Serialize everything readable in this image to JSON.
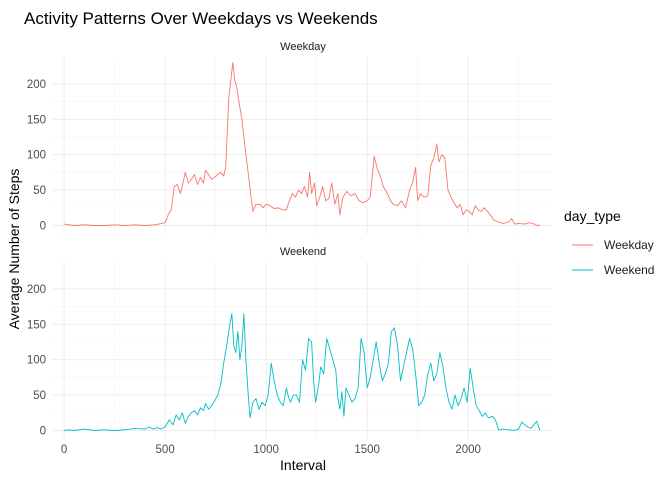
{
  "chart_data": {
    "type": "line",
    "title": "Activity Patterns Over Weekdays vs Weekends",
    "xlabel": "Interval",
    "ylabel": "Average Number of Steps",
    "xlim": [
      -60,
      2415
    ],
    "ylim": [
      -12,
      238
    ],
    "x_ticks": [
      0,
      500,
      1000,
      1500,
      2000
    ],
    "y_ticks": [
      0,
      50,
      100,
      150,
      200
    ],
    "grid": true,
    "legend": {
      "title": "day_type",
      "position": "right",
      "entries": [
        "Weekday",
        "Weekend"
      ]
    },
    "facets": [
      "Weekday",
      "Weekend"
    ],
    "series": [
      {
        "name": "Weekday",
        "facet": "Weekday",
        "color": "#F8766D",
        "points": [
          [
            0,
            2
          ],
          [
            25,
            1
          ],
          [
            50,
            0
          ],
          [
            100,
            1
          ],
          [
            150,
            0
          ],
          [
            200,
            0
          ],
          [
            250,
            1
          ],
          [
            300,
            0
          ],
          [
            350,
            1
          ],
          [
            400,
            0
          ],
          [
            450,
            1
          ],
          [
            500,
            4
          ],
          [
            515,
            15
          ],
          [
            530,
            22
          ],
          [
            545,
            55
          ],
          [
            560,
            58
          ],
          [
            575,
            45
          ],
          [
            590,
            62
          ],
          [
            600,
            75
          ],
          [
            615,
            60
          ],
          [
            630,
            65
          ],
          [
            645,
            72
          ],
          [
            660,
            58
          ],
          [
            675,
            68
          ],
          [
            690,
            60
          ],
          [
            700,
            78
          ],
          [
            715,
            72
          ],
          [
            730,
            65
          ],
          [
            745,
            68
          ],
          [
            760,
            72
          ],
          [
            775,
            75
          ],
          [
            790,
            70
          ],
          [
            800,
            82
          ],
          [
            815,
            180
          ],
          [
            825,
            205
          ],
          [
            835,
            230
          ],
          [
            845,
            205
          ],
          [
            855,
            195
          ],
          [
            865,
            175
          ],
          [
            880,
            150
          ],
          [
            900,
            100
          ],
          [
            915,
            65
          ],
          [
            925,
            40
          ],
          [
            935,
            20
          ],
          [
            950,
            30
          ],
          [
            970,
            30
          ],
          [
            985,
            25
          ],
          [
            1000,
            30
          ],
          [
            1020,
            28
          ],
          [
            1040,
            24
          ],
          [
            1060,
            25
          ],
          [
            1080,
            22
          ],
          [
            1100,
            22
          ],
          [
            1115,
            35
          ],
          [
            1130,
            45
          ],
          [
            1145,
            40
          ],
          [
            1160,
            50
          ],
          [
            1175,
            45
          ],
          [
            1190,
            55
          ],
          [
            1205,
            40
          ],
          [
            1215,
            75
          ],
          [
            1225,
            45
          ],
          [
            1240,
            60
          ],
          [
            1250,
            28
          ],
          [
            1265,
            40
          ],
          [
            1280,
            55
          ],
          [
            1295,
            35
          ],
          [
            1310,
            38
          ],
          [
            1325,
            60
          ],
          [
            1340,
            30
          ],
          [
            1355,
            45
          ],
          [
            1365,
            15
          ],
          [
            1380,
            40
          ],
          [
            1400,
            48
          ],
          [
            1420,
            42
          ],
          [
            1440,
            45
          ],
          [
            1460,
            35
          ],
          [
            1480,
            32
          ],
          [
            1500,
            35
          ],
          [
            1515,
            40
          ],
          [
            1535,
            98
          ],
          [
            1550,
            80
          ],
          [
            1565,
            70
          ],
          [
            1580,
            55
          ],
          [
            1600,
            45
          ],
          [
            1615,
            35
          ],
          [
            1630,
            30
          ],
          [
            1650,
            28
          ],
          [
            1670,
            35
          ],
          [
            1690,
            25
          ],
          [
            1710,
            50
          ],
          [
            1725,
            60
          ],
          [
            1740,
            82
          ],
          [
            1750,
            35
          ],
          [
            1765,
            45
          ],
          [
            1780,
            40
          ],
          [
            1800,
            42
          ],
          [
            1815,
            85
          ],
          [
            1830,
            95
          ],
          [
            1845,
            115
          ],
          [
            1855,
            90
          ],
          [
            1870,
            100
          ],
          [
            1885,
            95
          ],
          [
            1900,
            50
          ],
          [
            1915,
            40
          ],
          [
            1930,
            32
          ],
          [
            1945,
            25
          ],
          [
            1960,
            30
          ],
          [
            1975,
            15
          ],
          [
            1990,
            22
          ],
          [
            2005,
            20
          ],
          [
            2020,
            15
          ],
          [
            2035,
            28
          ],
          [
            2050,
            22
          ],
          [
            2065,
            20
          ],
          [
            2080,
            25
          ],
          [
            2095,
            20
          ],
          [
            2110,
            15
          ],
          [
            2125,
            8
          ],
          [
            2150,
            5
          ],
          [
            2175,
            3
          ],
          [
            2200,
            5
          ],
          [
            2215,
            10
          ],
          [
            2230,
            2
          ],
          [
            2250,
            3
          ],
          [
            2280,
            2
          ],
          [
            2300,
            4
          ],
          [
            2320,
            3
          ],
          [
            2340,
            0
          ],
          [
            2355,
            1
          ]
        ]
      },
      {
        "name": "Weekend",
        "facet": "Weekend",
        "color": "#00BFC4",
        "points": [
          [
            0,
            0
          ],
          [
            25,
            1
          ],
          [
            50,
            0
          ],
          [
            100,
            2
          ],
          [
            150,
            0
          ],
          [
            200,
            1
          ],
          [
            250,
            0
          ],
          [
            300,
            1
          ],
          [
            350,
            3
          ],
          [
            400,
            2
          ],
          [
            420,
            5
          ],
          [
            440,
            2
          ],
          [
            460,
            4
          ],
          [
            480,
            2
          ],
          [
            500,
            5
          ],
          [
            520,
            15
          ],
          [
            540,
            8
          ],
          [
            555,
            22
          ],
          [
            570,
            15
          ],
          [
            585,
            25
          ],
          [
            600,
            10
          ],
          [
            615,
            20
          ],
          [
            630,
            25
          ],
          [
            645,
            28
          ],
          [
            660,
            22
          ],
          [
            675,
            32
          ],
          [
            690,
            28
          ],
          [
            700,
            38
          ],
          [
            715,
            30
          ],
          [
            730,
            35
          ],
          [
            745,
            42
          ],
          [
            760,
            50
          ],
          [
            775,
            65
          ],
          [
            790,
            95
          ],
          [
            805,
            120
          ],
          [
            820,
            150
          ],
          [
            830,
            165
          ],
          [
            840,
            120
          ],
          [
            850,
            110
          ],
          [
            860,
            140
          ],
          [
            870,
            100
          ],
          [
            880,
            120
          ],
          [
            890,
            165
          ],
          [
            900,
            100
          ],
          [
            910,
            55
          ],
          [
            920,
            18
          ],
          [
            935,
            40
          ],
          [
            950,
            45
          ],
          [
            965,
            30
          ],
          [
            980,
            40
          ],
          [
            995,
            35
          ],
          [
            1010,
            50
          ],
          [
            1025,
            95
          ],
          [
            1040,
            70
          ],
          [
            1055,
            50
          ],
          [
            1070,
            40
          ],
          [
            1085,
            35
          ],
          [
            1100,
            60
          ],
          [
            1110,
            48
          ],
          [
            1120,
            40
          ],
          [
            1135,
            50
          ],
          [
            1150,
            50
          ],
          [
            1165,
            40
          ],
          [
            1180,
            100
          ],
          [
            1195,
            85
          ],
          [
            1210,
            130
          ],
          [
            1225,
            125
          ],
          [
            1235,
            70
          ],
          [
            1245,
            40
          ],
          [
            1260,
            65
          ],
          [
            1270,
            90
          ],
          [
            1285,
            80
          ],
          [
            1300,
            130
          ],
          [
            1315,
            115
          ],
          [
            1330,
            100
          ],
          [
            1345,
            85
          ],
          [
            1355,
            45
          ],
          [
            1365,
            30
          ],
          [
            1375,
            55
          ],
          [
            1385,
            20
          ],
          [
            1395,
            60
          ],
          [
            1410,
            50
          ],
          [
            1425,
            40
          ],
          [
            1440,
            45
          ],
          [
            1455,
            60
          ],
          [
            1470,
            130
          ],
          [
            1485,
            110
          ],
          [
            1500,
            60
          ],
          [
            1515,
            75
          ],
          [
            1530,
            100
          ],
          [
            1545,
            125
          ],
          [
            1560,
            95
          ],
          [
            1575,
            70
          ],
          [
            1590,
            80
          ],
          [
            1605,
            95
          ],
          [
            1620,
            140
          ],
          [
            1635,
            145
          ],
          [
            1650,
            120
          ],
          [
            1665,
            70
          ],
          [
            1680,
            90
          ],
          [
            1695,
            110
          ],
          [
            1710,
            130
          ],
          [
            1725,
            115
          ],
          [
            1740,
            80
          ],
          [
            1755,
            35
          ],
          [
            1770,
            40
          ],
          [
            1785,
            50
          ],
          [
            1800,
            80
          ],
          [
            1815,
            95
          ],
          [
            1830,
            70
          ],
          [
            1845,
            80
          ],
          [
            1860,
            110
          ],
          [
            1875,
            90
          ],
          [
            1890,
            60
          ],
          [
            1905,
            40
          ],
          [
            1920,
            30
          ],
          [
            1935,
            50
          ],
          [
            1950,
            35
          ],
          [
            1965,
            45
          ],
          [
            1980,
            60
          ],
          [
            1995,
            40
          ],
          [
            2010,
            88
          ],
          [
            2025,
            60
          ],
          [
            2040,
            35
          ],
          [
            2055,
            28
          ],
          [
            2070,
            20
          ],
          [
            2085,
            25
          ],
          [
            2100,
            18
          ],
          [
            2120,
            20
          ],
          [
            2135,
            15
          ],
          [
            2150,
            1
          ],
          [
            2175,
            2
          ],
          [
            2200,
            1
          ],
          [
            2225,
            0
          ],
          [
            2250,
            2
          ],
          [
            2265,
            12
          ],
          [
            2280,
            8
          ],
          [
            2295,
            5
          ],
          [
            2310,
            3
          ],
          [
            2325,
            8
          ],
          [
            2340,
            13
          ],
          [
            2355,
            0
          ]
        ]
      }
    ]
  }
}
